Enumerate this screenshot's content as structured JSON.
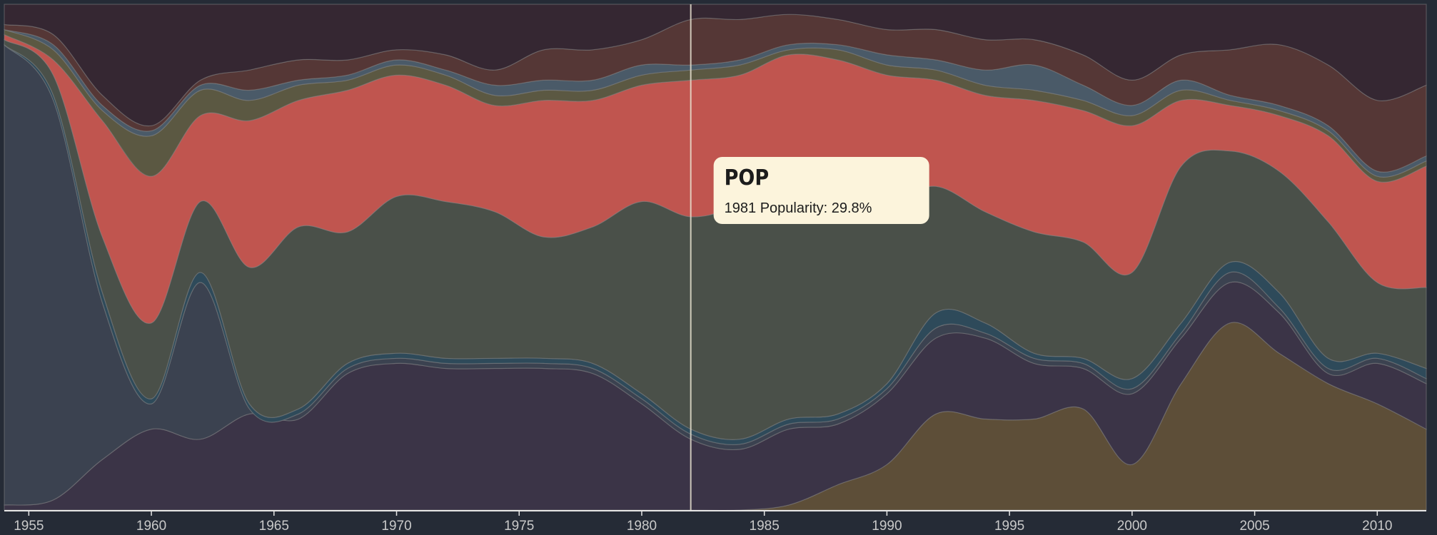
{
  "chart_data": {
    "type": "area",
    "stacked": true,
    "x": [
      1954,
      1956,
      1958,
      1960,
      1962,
      1964,
      1966,
      1968,
      1970,
      1972,
      1974,
      1976,
      1978,
      1980,
      1982,
      1984,
      1986,
      1988,
      1990,
      1992,
      1994,
      1996,
      1998,
      2000,
      2002,
      2004,
      2006,
      2008,
      2010,
      2012
    ],
    "xlim": [
      1954,
      2012
    ],
    "xticks": [
      1955,
      1960,
      1965,
      1970,
      1975,
      1980,
      1985,
      1990,
      1995,
      2000,
      2005,
      2010
    ],
    "ylim": [
      0,
      100
    ],
    "series": [
      {
        "color": "#5d4e38",
        "values": [
          0,
          0,
          0,
          0,
          0,
          0,
          0,
          0,
          0,
          0,
          0,
          0,
          0,
          0,
          0,
          0,
          1,
          5,
          9,
          19,
          18,
          18,
          20,
          9,
          25,
          37,
          31,
          25,
          21,
          16
        ]
      },
      {
        "color": "#3b3447",
        "values": [
          1,
          2,
          10,
          16,
          14,
          19,
          18,
          27,
          29,
          28,
          28,
          28,
          27,
          21,
          14,
          12,
          15,
          12,
          14,
          15,
          16,
          11,
          8,
          14,
          9,
          8,
          8,
          2,
          8,
          9
        ]
      },
      {
        "color": "#3b4250",
        "values": [
          91,
          79,
          31,
          5,
          31,
          1,
          1,
          1,
          1,
          1,
          1,
          1,
          1,
          1,
          1,
          1,
          1,
          1,
          1,
          2,
          1,
          1,
          1,
          1,
          1,
          2,
          1,
          1,
          1,
          1
        ]
      },
      {
        "color": "#2e4a5a",
        "values": [
          0,
          1,
          2,
          1,
          2,
          1,
          1,
          1,
          1,
          1,
          1,
          1,
          1,
          1,
          1,
          1,
          1,
          1,
          1,
          3,
          2,
          1,
          1,
          2,
          2,
          2,
          3,
          2,
          1,
          2
        ]
      },
      {
        "color": "#4a5049",
        "values": [
          1,
          4,
          11,
          15,
          14,
          27,
          36,
          26,
          31,
          31,
          29,
          24,
          27,
          38,
          42,
          46,
          45,
          43,
          36,
          25,
          22,
          24,
          23,
          21,
          31,
          22,
          24,
          27,
          14,
          16
        ]
      },
      {
        "name": "POP",
        "color": "#c0554f",
        "values": [
          1,
          3,
          23,
          29,
          17,
          29,
          25,
          28,
          24,
          23,
          21,
          27,
          25,
          23,
          27,
          26,
          27,
          27,
          25,
          21,
          23,
          26,
          26,
          29,
          13,
          9,
          11,
          17,
          20,
          24
        ]
      },
      {
        "color": "#5b5842",
        "values": [
          1,
          2,
          2,
          8,
          5,
          4,
          3,
          2,
          2,
          2,
          2,
          2,
          2,
          2,
          2,
          2,
          1,
          2,
          2,
          2,
          2,
          2,
          2,
          2,
          2,
          1,
          1,
          1,
          1,
          1
        ]
      },
      {
        "color": "#4a5a68",
        "values": [
          0,
          1,
          1,
          1,
          1,
          2,
          1,
          1,
          1,
          1,
          2,
          2,
          2,
          2,
          1,
          1,
          1,
          1,
          2,
          2,
          3,
          5,
          3,
          2,
          2,
          1,
          1,
          1,
          1,
          1
        ]
      },
      {
        "color": "#553736",
        "values": [
          1,
          2,
          2,
          1,
          1,
          4,
          4,
          3,
          2,
          3,
          3,
          6,
          6,
          5,
          9,
          8,
          6,
          5,
          5,
          6,
          6,
          5,
          6,
          5,
          5,
          9,
          12,
          12,
          14,
          14
        ]
      },
      {
        "color": "#352732",
        "values": [
          4,
          6,
          18,
          24,
          15,
          13,
          11,
          11,
          9,
          10,
          13,
          9,
          9,
          7,
          3,
          3,
          2,
          3,
          5,
          5,
          7,
          7,
          10,
          15,
          10,
          9,
          8,
          12,
          19,
          16
        ]
      }
    ],
    "tooltip": {
      "title_series": 5,
      "text": "1981 Popularity: 29.8%",
      "hover_x": 1982
    }
  }
}
